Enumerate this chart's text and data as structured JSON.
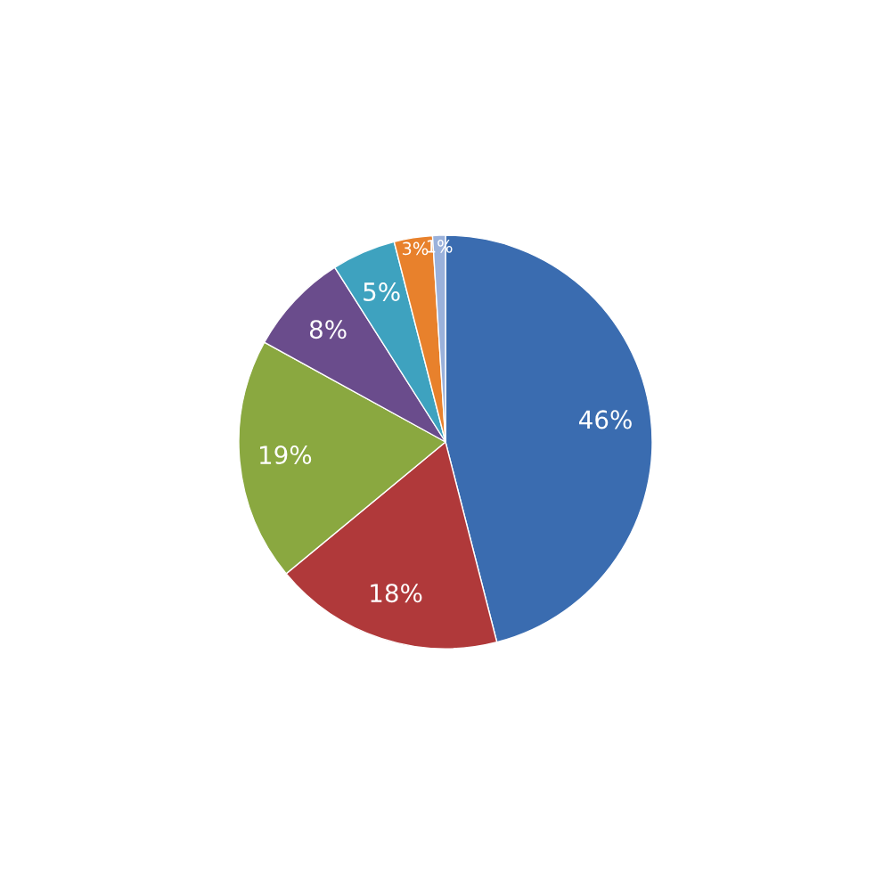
{
  "chart_data": {
    "type": "pie",
    "categories": [
      null,
      null,
      null,
      null,
      null,
      null,
      null
    ],
    "values": [
      46,
      18,
      19,
      8,
      5,
      3,
      1
    ],
    "colors": [
      "#3a6cb0",
      "#b0393a",
      "#8aa840",
      "#6a4c8c",
      "#3ea2bf",
      "#e8812c",
      "#9ab1db"
    ],
    "value_labels": [
      "46%",
      "18%",
      "19%",
      "8%",
      "5%",
      "3%",
      "1%"
    ]
  }
}
